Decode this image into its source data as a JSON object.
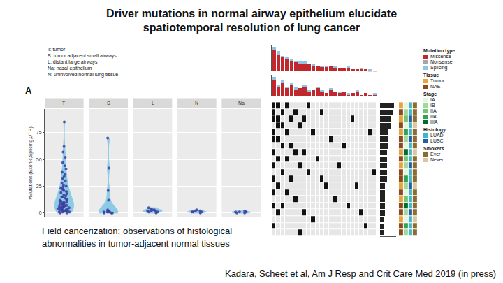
{
  "slide": {
    "title": "Driver mutations in normal airway epithelium elucidate spatiotemporal resolution of lung cancer",
    "key": [
      "T: tumor",
      "S: tumor adjacent small airways",
      "L: distant large airways",
      "Na: nasal epithelium",
      "N: uninvolved normal lung tissue"
    ],
    "panel_label": "A",
    "note": {
      "term": "Field cancerization:",
      "text": "observations of histological abnormalities in tumor-adjacent normal tissues"
    },
    "citation": "Kadara, Scheet et al, Am J Resp and Crit Care Med 2019 (in press)"
  },
  "chart_data": [
    {
      "type": "violin",
      "y_label": "#Mutations (Exonic,Splicing,UTR)",
      "ylim": [
        -4,
        97
      ],
      "yticks": [
        0,
        25,
        50,
        75
      ],
      "grid": true,
      "color": "#3b3b9e",
      "series": [
        {
          "name": "T",
          "color": "#8ccbe6",
          "values": [
            0,
            0,
            1,
            1,
            1,
            2,
            2,
            2,
            3,
            3,
            3,
            4,
            4,
            5,
            5,
            5,
            6,
            6,
            7,
            7,
            8,
            8,
            9,
            9,
            10,
            10,
            11,
            12,
            12,
            13,
            14,
            15,
            15,
            16,
            17,
            18,
            19,
            20,
            21,
            22,
            23,
            24,
            25,
            26,
            28,
            30,
            32,
            34,
            36,
            38,
            41,
            44,
            47,
            52,
            57,
            62,
            85,
            3,
            6,
            11
          ]
        },
        {
          "name": "S",
          "color": "#8ccbe6",
          "values": [
            0,
            0,
            0,
            1,
            1,
            1,
            1,
            2,
            2,
            3,
            12,
            21,
            42,
            70
          ]
        },
        {
          "name": "L",
          "color": "#8ccbe6",
          "values": [
            0,
            1,
            1,
            2,
            2,
            3,
            3,
            4,
            5,
            2
          ]
        },
        {
          "name": "N",
          "color": "#8ccbe6",
          "values": [
            0,
            1,
            1,
            2,
            2,
            3,
            1
          ]
        },
        {
          "name": "Na",
          "color": "#8ccbe6",
          "values": [
            0,
            0,
            1,
            1,
            2,
            1
          ]
        }
      ]
    },
    {
      "type": "heatmap",
      "tick_labels": false,
      "colors": [
        "#e6e6e6",
        "#111111"
      ],
      "cells": [
        [
          1,
          1,
          0,
          1,
          0,
          0,
          0,
          0,
          1,
          0,
          0,
          0,
          0,
          0,
          0,
          0,
          0,
          0,
          0,
          0,
          0,
          0,
          0,
          0
        ],
        [
          1,
          0,
          1,
          0,
          0,
          1,
          0,
          0,
          0,
          0,
          0,
          1,
          0,
          0,
          0,
          0,
          0,
          0,
          0,
          0,
          0,
          0,
          0,
          0
        ],
        [
          1,
          1,
          0,
          0,
          1,
          0,
          0,
          1,
          0,
          0,
          0,
          0,
          0,
          0,
          0,
          0,
          0,
          0,
          1,
          0,
          0,
          0,
          0,
          0
        ],
        [
          0,
          1,
          1,
          0,
          0,
          0,
          1,
          0,
          0,
          0,
          0,
          0,
          0,
          0,
          0,
          0,
          0,
          0,
          0,
          0,
          0,
          0,
          0,
          0
        ],
        [
          1,
          0,
          0,
          1,
          0,
          0,
          0,
          0,
          0,
          1,
          0,
          0,
          0,
          0,
          0,
          0,
          0,
          0,
          0,
          0,
          0,
          0,
          1,
          0
        ],
        [
          1,
          1,
          0,
          0,
          0,
          0,
          0,
          0,
          0,
          0,
          0,
          0,
          0,
          1,
          0,
          0,
          0,
          0,
          0,
          0,
          0,
          0,
          0,
          0
        ],
        [
          0,
          0,
          1,
          0,
          1,
          0,
          0,
          0,
          0,
          0,
          0,
          0,
          0,
          0,
          0,
          0,
          1,
          0,
          0,
          0,
          0,
          0,
          0,
          0
        ],
        [
          1,
          0,
          0,
          0,
          0,
          1,
          0,
          1,
          0,
          0,
          0,
          0,
          0,
          0,
          0,
          0,
          0,
          0,
          0,
          0,
          0,
          0,
          0,
          0
        ],
        [
          0,
          1,
          0,
          1,
          0,
          0,
          0,
          0,
          0,
          0,
          1,
          0,
          0,
          0,
          0,
          0,
          0,
          0,
          0,
          0,
          0,
          0,
          0,
          0
        ],
        [
          1,
          0,
          0,
          0,
          0,
          0,
          1,
          0,
          0,
          0,
          0,
          0,
          0,
          0,
          0,
          1,
          0,
          0,
          0,
          0,
          0,
          0,
          0,
          0
        ],
        [
          0,
          0,
          1,
          0,
          0,
          0,
          0,
          0,
          1,
          0,
          0,
          0,
          0,
          0,
          0,
          0,
          0,
          0,
          0,
          0,
          0,
          0,
          0,
          1
        ],
        [
          1,
          0,
          0,
          0,
          1,
          0,
          0,
          0,
          0,
          0,
          0,
          1,
          0,
          0,
          0,
          0,
          0,
          0,
          0,
          0,
          0,
          0,
          0,
          0
        ],
        [
          0,
          1,
          0,
          0,
          0,
          0,
          0,
          0,
          0,
          0,
          0,
          0,
          1,
          0,
          0,
          0,
          0,
          0,
          0,
          1,
          0,
          0,
          0,
          0
        ],
        [
          1,
          0,
          0,
          1,
          0,
          0,
          0,
          0,
          0,
          0,
          0,
          0,
          0,
          0,
          0,
          0,
          0,
          0,
          0,
          0,
          0,
          0,
          0,
          0
        ],
        [
          0,
          0,
          0,
          0,
          0,
          1,
          0,
          0,
          0,
          0,
          0,
          0,
          0,
          0,
          1,
          0,
          0,
          0,
          0,
          0,
          0,
          0,
          0,
          0
        ],
        [
          1,
          0,
          1,
          0,
          0,
          0,
          0,
          0,
          0,
          0,
          0,
          0,
          0,
          0,
          0,
          0,
          0,
          1,
          0,
          0,
          0,
          0,
          0,
          0
        ],
        [
          0,
          1,
          0,
          0,
          0,
          0,
          0,
          1,
          0,
          0,
          0,
          0,
          0,
          0,
          0,
          0,
          0,
          0,
          0,
          0,
          1,
          0,
          0,
          0
        ],
        [
          0,
          0,
          0,
          0,
          0,
          0,
          0,
          0,
          0,
          1,
          0,
          0,
          0,
          0,
          0,
          0,
          0,
          0,
          0,
          0,
          0,
          0,
          0,
          0
        ],
        [
          1,
          0,
          0,
          0,
          0,
          0,
          0,
          0,
          0,
          0,
          0,
          0,
          0,
          0,
          0,
          0,
          0,
          0,
          0,
          0,
          0,
          1,
          0,
          0
        ],
        [
          0,
          0,
          0,
          0,
          0,
          0,
          1,
          0,
          0,
          0,
          0,
          0,
          0,
          0,
          0,
          0,
          0,
          0,
          0,
          0,
          0,
          0,
          0,
          0
        ]
      ],
      "top_bars": [
        {
          "stacked": true,
          "ylim": [
            0,
            22
          ],
          "series": [
            {
              "color": "#c0282d",
              "values": [
                18,
                14,
                12,
                10,
                9,
                8,
                7,
                6,
                6,
                5,
                5,
                4,
                4,
                4,
                3,
                3,
                3,
                3,
                2,
                2,
                2,
                2,
                1,
                1
              ]
            },
            {
              "color": "#8ec5e6",
              "values": [
                2,
                3,
                1,
                2,
                1,
                1,
                1,
                2,
                0,
                1,
                0,
                1,
                1,
                0,
                1,
                0,
                0,
                1,
                0,
                0,
                1,
                0,
                1,
                0
              ]
            }
          ]
        },
        {
          "stacked": true,
          "ylim": [
            0,
            13
          ],
          "series": [
            {
              "color": "#c0282d",
              "values": [
                10,
                6,
                8,
                5,
                7,
                4,
                5,
                6,
                3,
                4,
                5,
                3,
                2,
                4,
                3,
                2,
                3,
                1,
                2,
                3,
                1,
                2,
                1,
                1
              ]
            },
            {
              "color": "#8ec5e6",
              "values": [
                2,
                1,
                2,
                1,
                1,
                2,
                0,
                1,
                1,
                0,
                1,
                1,
                0,
                1,
                0,
                1,
                0,
                1,
                0,
                1,
                0,
                0,
                0,
                1
              ]
            }
          ]
        }
      ],
      "row_counts": {
        "orientation": "horizontal",
        "color": "#222222",
        "xlim": [
          0,
          9
        ],
        "values": [
          8,
          7,
          6,
          6,
          5,
          5,
          5,
          4,
          4,
          4,
          4,
          4,
          3,
          3,
          3,
          3,
          3,
          2,
          2,
          2
        ]
      },
      "groups": [
        {
          "title": "Mutation type",
          "items": [
            {
              "label": "Missense",
              "color": "#c0282d"
            },
            {
              "label": "Nonsense",
              "color": "#a6a6a6"
            },
            {
              "label": "Splicing",
              "color": "#8ec5e6"
            }
          ]
        },
        {
          "title": "Tissue",
          "items": [
            {
              "label": "Tumor",
              "color": "#e8a33d"
            },
            {
              "label": "NAE",
              "color": "#8c4a1c"
            }
          ],
          "values": [
            0,
            1,
            0,
            1,
            0,
            1,
            1,
            0,
            1,
            0,
            1,
            1,
            0,
            1,
            0,
            1,
            1,
            0,
            1,
            1
          ]
        },
        {
          "title": "Stage",
          "items": [
            {
              "label": "IA",
              "color": "#e5f5e0"
            },
            {
              "label": "IB",
              "color": "#a1d99b"
            },
            {
              "label": "IIA",
              "color": "#74c476"
            },
            {
              "label": "IIB",
              "color": "#31a354"
            },
            {
              "label": "IIIA",
              "color": "#006d2c"
            }
          ],
          "values": [
            0,
            1,
            2,
            0,
            3,
            1,
            0,
            4,
            2,
            1,
            0,
            3,
            1,
            0,
            2,
            4,
            1,
            0,
            3,
            1
          ]
        },
        {
          "title": "Histology",
          "items": [
            {
              "label": "LUAD",
              "color": "#41b6c4"
            },
            {
              "label": "LUSC",
              "color": "#225ea8"
            }
          ],
          "values": [
            0,
            0,
            1,
            0,
            0,
            1,
            0,
            0,
            0,
            1,
            0,
            0,
            1,
            0,
            0,
            0,
            1,
            0,
            0,
            0
          ]
        },
        {
          "title": "Smokers",
          "items": [
            {
              "label": "Ever",
              "color": "#8c6d31"
            },
            {
              "label": "Never",
              "color": "#d9c7a0"
            }
          ],
          "values": [
            0,
            0,
            0,
            1,
            0,
            0,
            0,
            1,
            0,
            0,
            0,
            0,
            1,
            0,
            0,
            0,
            0,
            1,
            0,
            0
          ]
        }
      ]
    }
  ]
}
